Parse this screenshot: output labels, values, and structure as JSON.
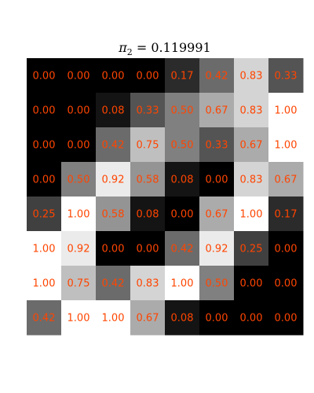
{
  "chart_data": {
    "type": "heatmap",
    "title": {
      "symbol": "π",
      "subscript": "2",
      "rest": " = 0.119991"
    },
    "rows": 8,
    "cols": 8,
    "values": [
      [
        0.0,
        0.0,
        0.0,
        0.0,
        0.17,
        0.42,
        0.83,
        0.33
      ],
      [
        0.0,
        0.0,
        0.08,
        0.33,
        0.5,
        0.67,
        0.83,
        1.0
      ],
      [
        0.0,
        0.0,
        0.42,
        0.75,
        0.5,
        0.33,
        0.67,
        1.0
      ],
      [
        0.0,
        0.5,
        0.92,
        0.58,
        0.08,
        0.0,
        0.83,
        0.67
      ],
      [
        0.25,
        1.0,
        0.58,
        0.08,
        0.0,
        0.67,
        1.0,
        0.17
      ],
      [
        1.0,
        0.92,
        0.0,
        0.0,
        0.42,
        0.92,
        0.25,
        0.0
      ],
      [
        1.0,
        0.75,
        0.42,
        0.83,
        1.0,
        0.5,
        0.0,
        0.0
      ],
      [
        0.42,
        1.0,
        1.0,
        0.67,
        0.08,
        0.0,
        0.0,
        0.0
      ]
    ],
    "labels": [
      [
        "0.00",
        "0.00",
        "0.00",
        "0.00",
        "0.17",
        "0.42",
        "0.83",
        "0.33"
      ],
      [
        "0.00",
        "0.00",
        "0.08",
        "0.33",
        "0.50",
        "0.67",
        "0.83",
        "1.00"
      ],
      [
        "0.00",
        "0.00",
        "0.42",
        "0.75",
        "0.50",
        "0.33",
        "0.67",
        "1.00"
      ],
      [
        "0.00",
        "0.50",
        "0.92",
        "0.58",
        "0.08",
        "0.00",
        "0.83",
        "0.67"
      ],
      [
        "0.25",
        "1.00",
        "0.58",
        "0.08",
        "0.00",
        "0.67",
        "1.00",
        "0.17"
      ],
      [
        "1.00",
        "0.92",
        "0.00",
        "0.00",
        "0.42",
        "0.92",
        "0.25",
        "0.00"
      ],
      [
        "1.00",
        "0.75",
        "0.42",
        "0.83",
        "1.00",
        "0.50",
        "0.00",
        "0.00"
      ],
      [
        "0.42",
        "1.00",
        "1.00",
        "0.67",
        "0.08",
        "0.00",
        "0.00",
        "0.00"
      ]
    ],
    "colormap": "gray",
    "value_range": [
      0,
      1
    ],
    "label_color": "#ff4500",
    "axes_visible": false,
    "grid": false,
    "legend": "none"
  }
}
